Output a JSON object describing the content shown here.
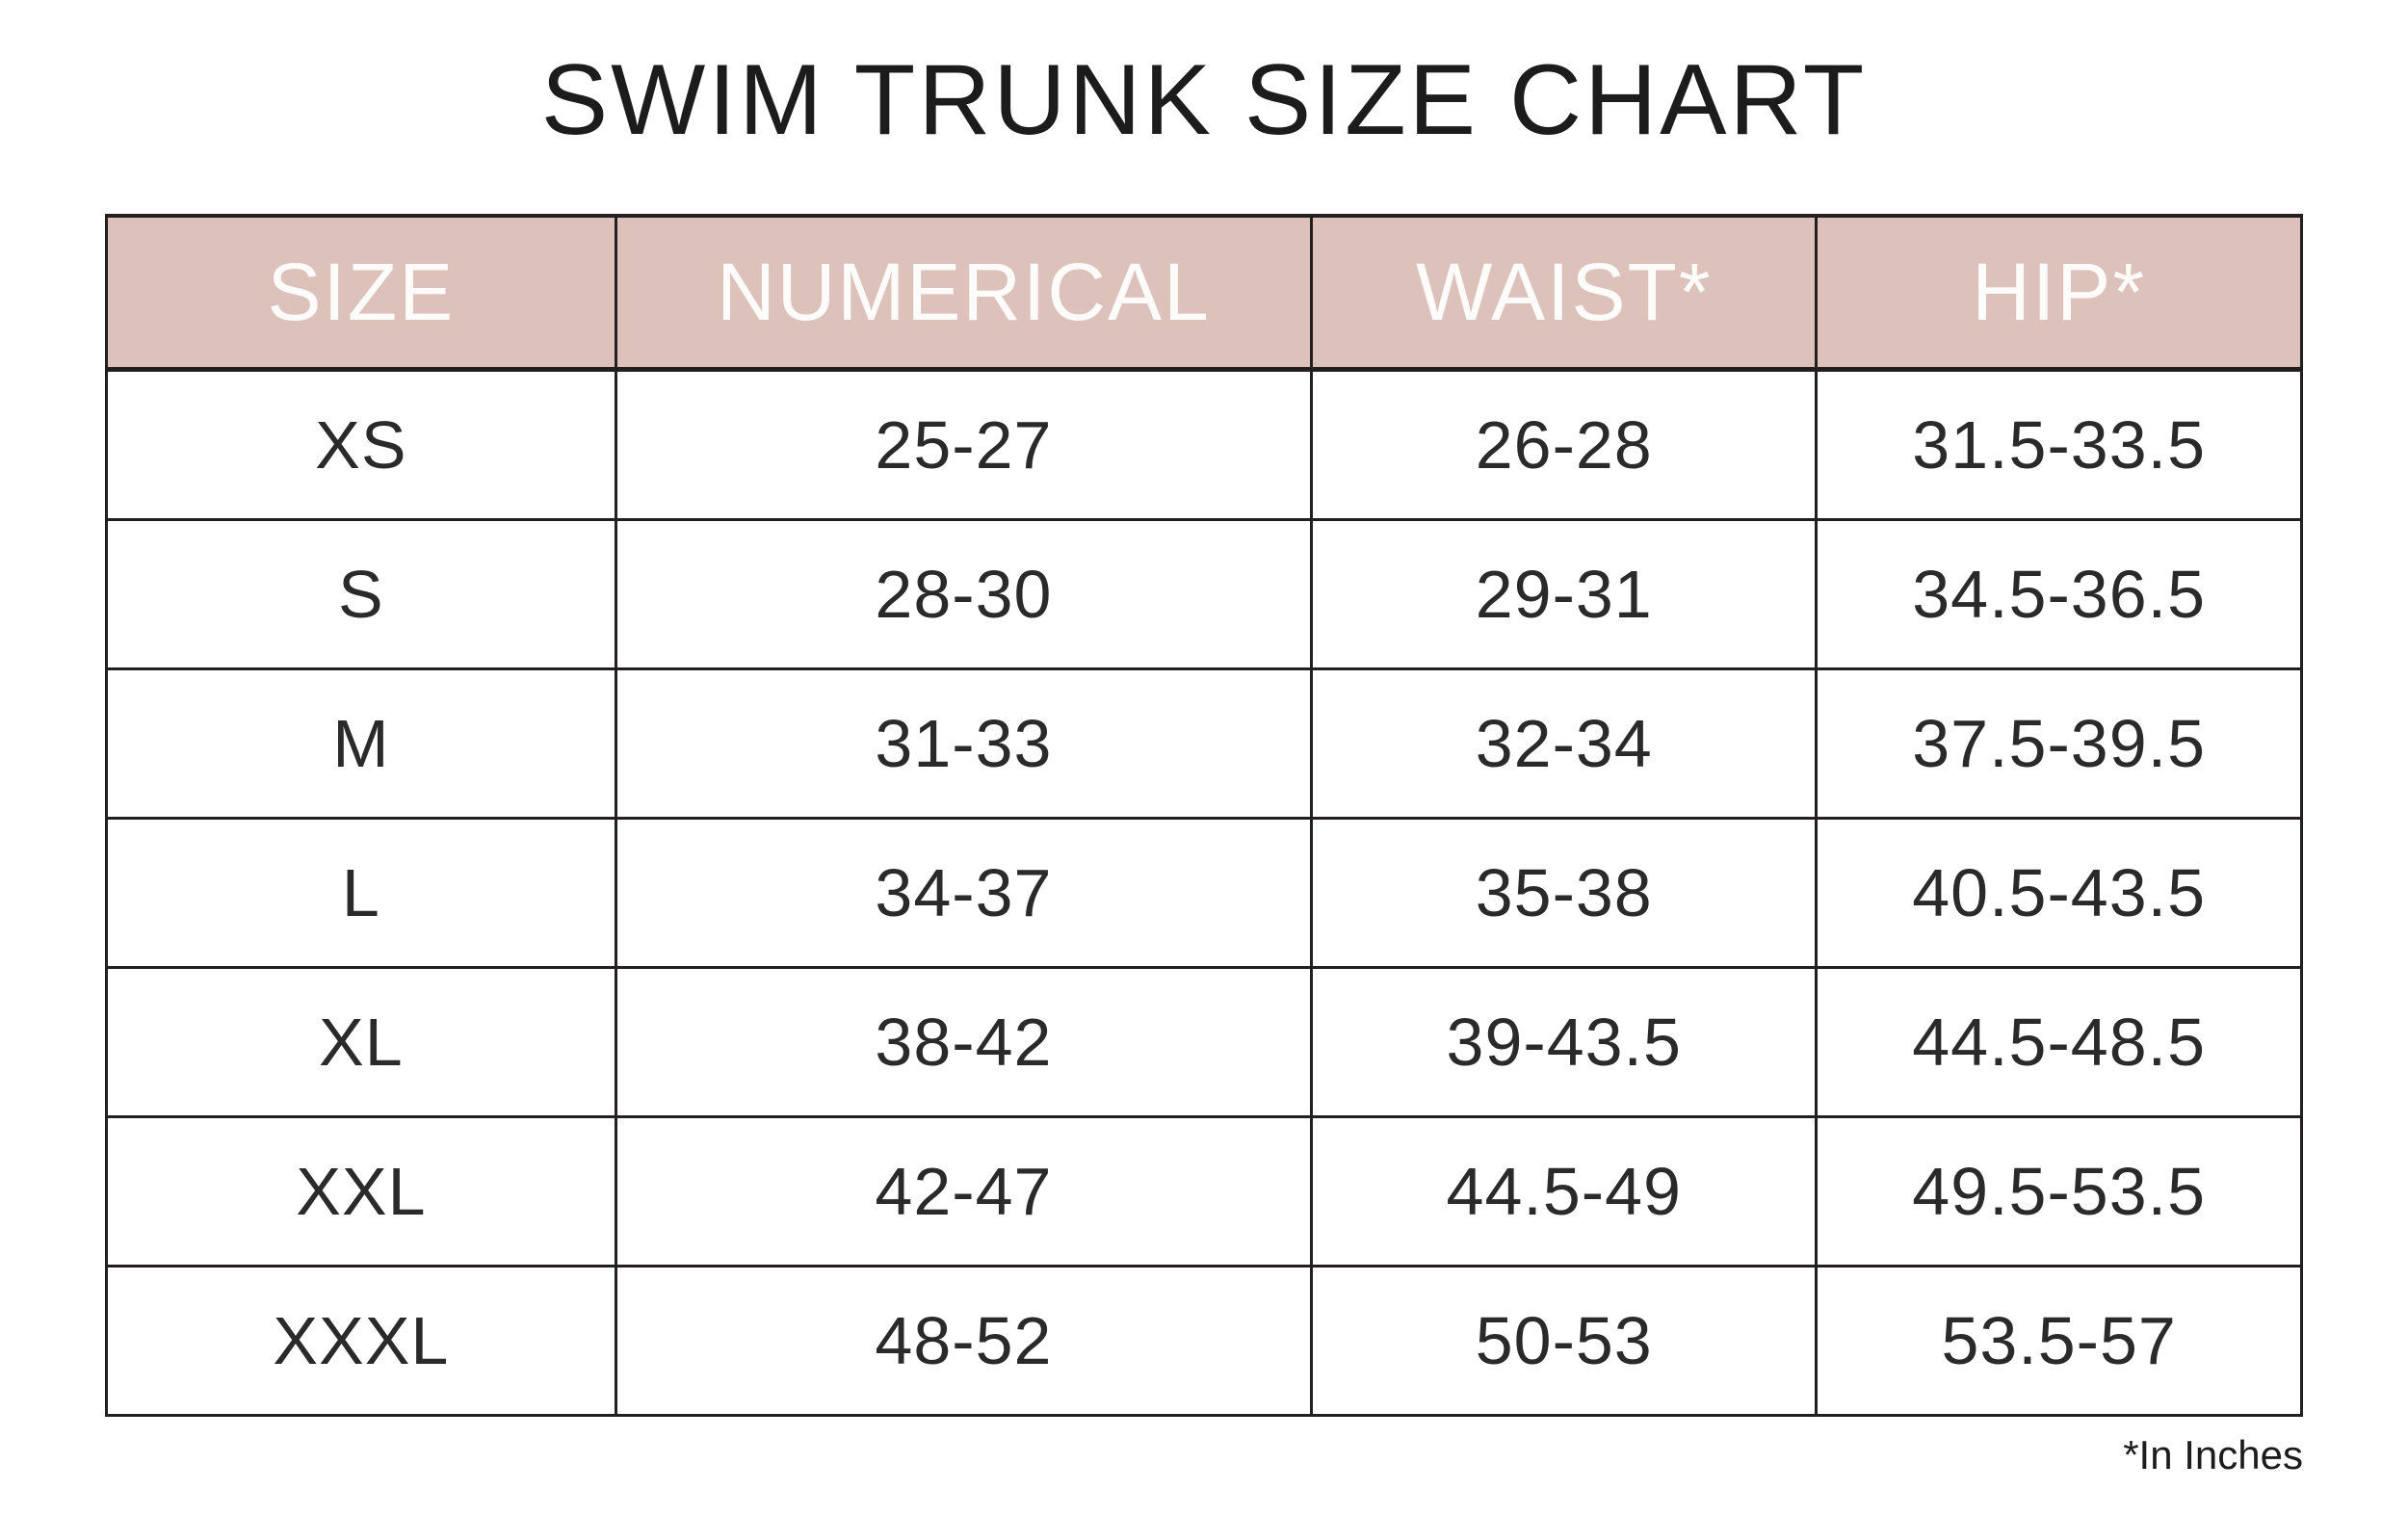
{
  "chart_data": {
    "type": "table",
    "title": "SWIM TRUNK SIZE CHART",
    "columns": [
      "SIZE",
      "NUMERICAL",
      "WAIST*",
      "HIP*"
    ],
    "rows": [
      [
        "XS",
        "25-27",
        "26-28",
        "31.5-33.5"
      ],
      [
        "S",
        "28-30",
        "29-31",
        "34.5-36.5"
      ],
      [
        "M",
        "31-33",
        "32-34",
        "37.5-39.5"
      ],
      [
        "L",
        "34-37",
        "35-38",
        "40.5-43.5"
      ],
      [
        "XL",
        "38-42",
        "39-43.5",
        "44.5-48.5"
      ],
      [
        "XXL",
        "42-47",
        "44.5-49",
        "49.5-53.5"
      ],
      [
        "XXXL",
        "48-52",
        "50-53",
        "53.5-57"
      ]
    ],
    "footnote": "*In Inches",
    "units": "inches",
    "colors": {
      "header_background": "#dcc2ba",
      "header_text": "#fdfcfb",
      "border": "#231f20",
      "body_text": "#2a2a2a"
    },
    "layout_hints": {
      "grid": "on",
      "header_row": true,
      "footnote_position": "bottom-right"
    }
  }
}
